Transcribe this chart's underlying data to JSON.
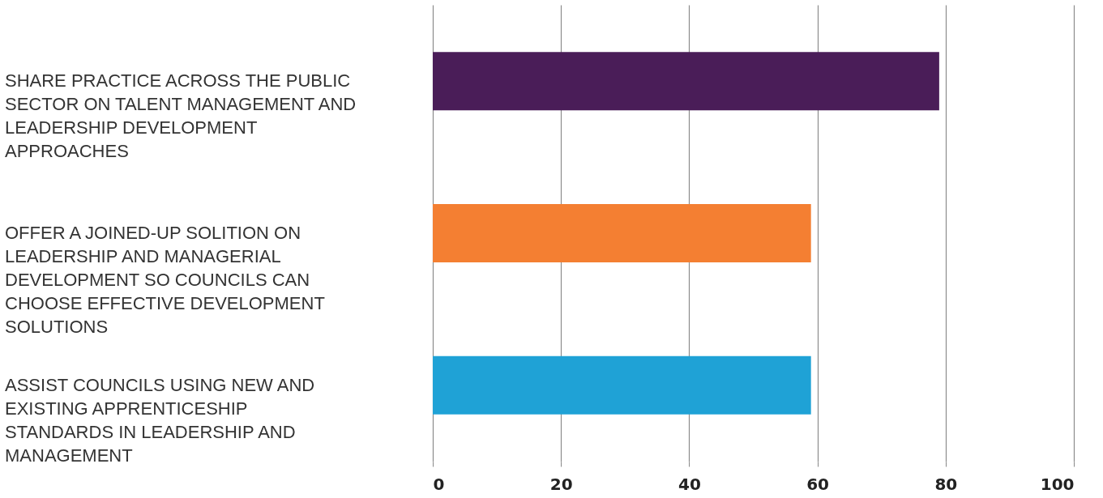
{
  "chart_data": {
    "type": "bar",
    "orientation": "horizontal",
    "categories": [
      "SHARE PRACTICE ACROSS THE PUBLIC SECTOR ON TALENT MANAGEMENT AND LEADERSHIP DEVELOPMENT APPROACHES",
      "OFFER A JOINED-UP SOLITION ON LEADERSHIP AND MANAGERIAL DEVELOPMENT SO COUNCILS CAN CHOOSE EFFECTIVE DEVELOPMENT SOLUTIONS",
      "ASSIST COUNCILS USING NEW AND EXISTING APPRENTICESHIP STANDARDS IN LEADERSHIP AND MANAGEMENT"
    ],
    "values": [
      79,
      59,
      59
    ],
    "colors": [
      "#4a1d58",
      "#f47f32",
      "#1fa2d6"
    ],
    "xlim": [
      0,
      100
    ],
    "xticks": [
      0,
      20,
      40,
      60,
      80,
      100
    ],
    "grid": "x"
  }
}
